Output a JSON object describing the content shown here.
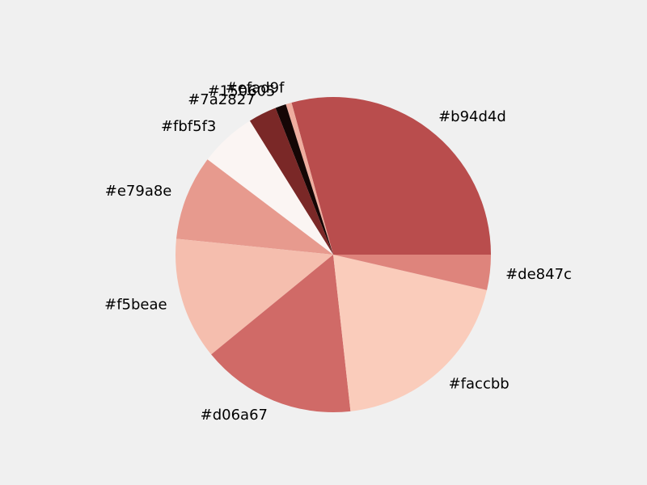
{
  "chart_data": {
    "type": "pie",
    "background": "#f0f0f0",
    "slices": [
      {
        "label": "#b94d4d",
        "color": "#b94d4d",
        "value": 29.2
      },
      {
        "label": "#efad9f",
        "color": "#efad9f",
        "value": 0.6
      },
      {
        "label": "#150605",
        "color": "#150605",
        "value": 1.1
      },
      {
        "label": "#7a2827",
        "color": "#7a2827",
        "value": 2.9
      },
      {
        "label": "#fbf5f3",
        "color": "#fbf5f3",
        "value": 5.8
      },
      {
        "label": "#e79a8e",
        "color": "#e79a8e",
        "value": 8.7
      },
      {
        "label": "#f5beae",
        "color": "#f5beae",
        "value": 12.5
      },
      {
        "label": "#d06a67",
        "color": "#d06a67",
        "value": 15.8
      },
      {
        "label": "#faccbb",
        "color": "#faccbb",
        "value": 19.6
      },
      {
        "label": "#de847c",
        "color": "#de847c",
        "value": 3.6
      }
    ]
  }
}
